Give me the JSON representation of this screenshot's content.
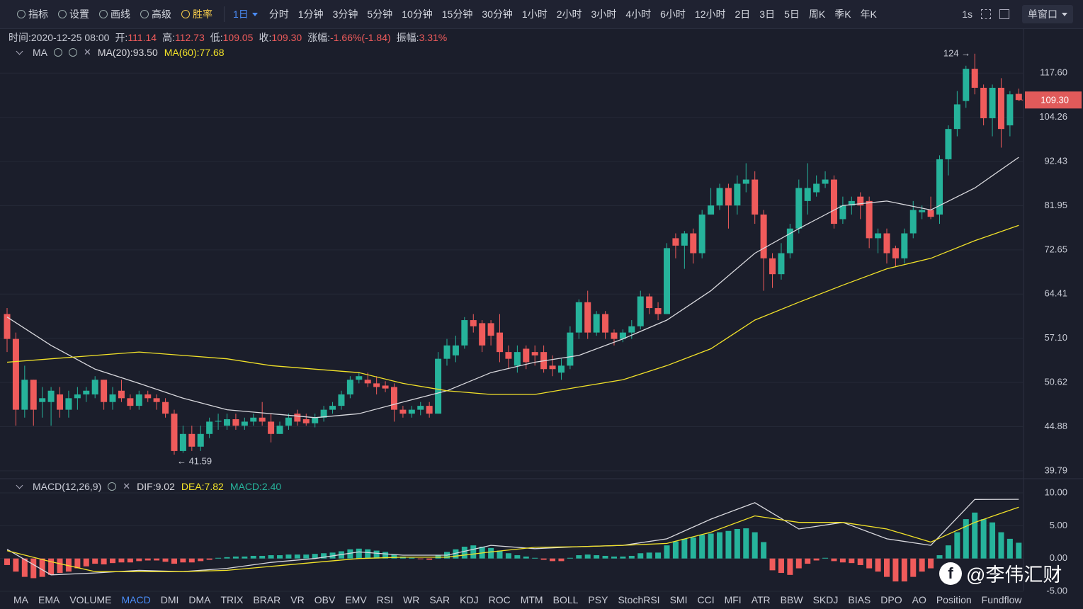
{
  "toolbar": {
    "tools": [
      "指标",
      "设置",
      "画线",
      "高级",
      "胜率"
    ],
    "active_period": "1日",
    "periods": [
      "分时",
      "1分钟",
      "3分钟",
      "5分钟",
      "10分钟",
      "15分钟",
      "30分钟",
      "1小时",
      "2小时",
      "3小时",
      "4小时",
      "6小时",
      "12小时",
      "2日",
      "3日",
      "5日",
      "周K",
      "季K",
      "年K"
    ],
    "refresh": "1s",
    "window": "单窗口"
  },
  "info": [
    {
      "label": "时间:",
      "value": "2020-12-25 08:00"
    },
    {
      "label": "开:",
      "value": "111.14"
    },
    {
      "label": "高:",
      "value": "112.73"
    },
    {
      "label": "低:",
      "value": "109.05"
    },
    {
      "label": "收:",
      "value": "109.30"
    },
    {
      "label": "涨幅:",
      "value": "-1.66%(-1.84)"
    },
    {
      "label": "振幅:",
      "value": "3.31%"
    }
  ],
  "tabs": [
    "MA",
    "EMA",
    "VOLUME",
    "MACD",
    "DMI",
    "DMA",
    "TRIX",
    "BRAR",
    "VR",
    "OBV",
    "EMV",
    "RSI",
    "WR",
    "SAR",
    "KDJ",
    "ROC",
    "MTM",
    "BOLL",
    "PSY",
    "StochRSI",
    "SMI",
    "CCI",
    "MFI",
    "ATR",
    "BBW",
    "SKDJ",
    "BIAS",
    "DPO",
    "AO",
    "Position",
    "Fundflow"
  ],
  "active_tab": "MACD",
  "watermark": "@李伟汇财",
  "chart_data": [
    {
      "type": "candlestick",
      "indicator": "MA",
      "log_scale": true,
      "up_color": "#26b39b",
      "down_color": "#ef5b5b",
      "ylim": [
        39.25,
        125.4
      ],
      "yticks": [
        {
          "value": 117.6,
          "label": "117.60"
        },
        {
          "value": 104.26,
          "label": "104.26"
        },
        {
          "value": 92.43,
          "label": "92.43"
        },
        {
          "value": 81.95,
          "label": "81.95"
        },
        {
          "value": 72.65,
          "label": "72.65"
        },
        {
          "value": 64.41,
          "label": "64.41"
        },
        {
          "value": 57.1,
          "label": "57.10"
        },
        {
          "value": 50.62,
          "label": "50.62"
        },
        {
          "value": 44.88,
          "label": "44.88"
        },
        {
          "value": 39.79,
          "label": "39.79"
        }
      ],
      "current_price": {
        "value": 109.3,
        "label": "109.30"
      },
      "high_marker": {
        "value": 124,
        "label": "124 →"
      },
      "low_marker": {
        "value": 41.59,
        "label": "← 41.59"
      },
      "candles": [
        [
          61,
          62,
          55,
          57
        ],
        [
          57,
          58,
          45,
          47
        ],
        [
          47,
          53,
          46,
          51
        ],
        [
          51,
          51,
          45,
          47
        ],
        [
          48,
          50,
          46,
          48.5
        ],
        [
          48,
          50,
          45,
          49.5
        ],
        [
          49,
          50,
          46,
          47
        ],
        [
          47,
          49.5,
          46,
          48.5
        ],
        [
          48.5,
          50,
          47,
          49
        ],
        [
          49,
          50,
          48,
          49.5
        ],
        [
          49,
          51.5,
          48.5,
          51
        ],
        [
          51,
          51,
          47,
          48
        ],
        [
          48,
          50,
          47,
          49
        ],
        [
          49.5,
          51,
          48,
          48.5
        ],
        [
          48.5,
          49,
          47,
          47.5
        ],
        [
          47.5,
          49.5,
          47,
          49
        ],
        [
          49,
          49.5,
          48,
          48.5
        ],
        [
          48.5,
          49,
          47,
          48
        ],
        [
          48,
          48.5,
          46,
          46.5
        ],
        [
          46.5,
          47,
          41.59,
          42
        ],
        [
          42,
          45,
          41.8,
          44
        ],
        [
          44,
          45,
          42,
          42.5
        ],
        [
          42.5,
          45,
          42,
          44
        ],
        [
          44,
          46,
          43.5,
          45.5
        ],
        [
          45.5,
          46.5,
          44.5,
          45.6
        ],
        [
          45,
          46.5,
          44.5,
          45.8
        ],
        [
          45.8,
          46.5,
          44.5,
          45
        ],
        [
          45,
          46,
          44.5,
          45.5
        ],
        [
          45.5,
          46.5,
          45,
          46
        ],
        [
          46,
          48,
          45,
          45.5
        ],
        [
          45.5,
          46.5,
          43,
          44
        ],
        [
          44,
          45.5,
          44,
          45
        ],
        [
          45,
          46.5,
          44.5,
          46
        ],
        [
          46.5,
          47,
          45,
          45.5
        ],
        [
          45.8,
          46.5,
          45,
          45.3
        ],
        [
          45.3,
          46.5,
          44.8,
          46
        ],
        [
          46,
          47.5,
          45.5,
          47
        ],
        [
          47,
          48,
          46.5,
          47.5
        ],
        [
          47.5,
          49.5,
          47,
          49
        ],
        [
          49,
          51.5,
          48.5,
          51
        ],
        [
          51,
          52,
          50.5,
          51.5
        ],
        [
          51,
          52,
          50,
          50.5
        ],
        [
          50.5,
          51.5,
          49,
          50
        ],
        [
          50.2,
          50.8,
          49.3,
          49.8
        ],
        [
          50,
          50.5,
          45.5,
          47
        ],
        [
          47,
          47.5,
          46,
          46.5
        ],
        [
          46.5,
          47.5,
          46,
          47
        ],
        [
          47,
          48,
          46.3,
          47.5
        ],
        [
          47.5,
          48,
          46,
          46.5
        ],
        [
          46.5,
          55,
          46.5,
          54
        ],
        [
          54,
          57,
          53,
          56
        ],
        [
          54.5,
          57.5,
          53.5,
          56
        ],
        [
          56,
          60.5,
          55.5,
          60
        ],
        [
          60,
          61,
          58,
          59
        ],
        [
          59.5,
          60,
          55,
          56
        ],
        [
          59.5,
          60,
          56,
          57.5
        ],
        [
          58,
          61,
          53.5,
          55
        ],
        [
          55,
          56,
          52.5,
          54
        ],
        [
          53,
          56,
          52,
          55
        ],
        [
          55.5,
          56,
          52.5,
          53.5
        ],
        [
          55,
          56,
          53,
          54.5
        ],
        [
          55,
          56,
          52,
          52.5
        ],
        [
          53,
          54.5,
          51.5,
          52.5
        ],
        [
          52,
          54,
          51,
          53
        ],
        [
          53,
          59,
          52.5,
          58
        ],
        [
          58,
          63.5,
          57,
          63
        ],
        [
          63,
          65,
          57,
          58
        ],
        [
          58,
          61.5,
          57.5,
          61
        ],
        [
          61,
          61.5,
          57,
          58
        ],
        [
          58,
          58.5,
          56,
          57
        ],
        [
          57,
          58.5,
          56.5,
          58
        ],
        [
          58,
          60,
          57,
          59
        ],
        [
          59,
          65,
          58.5,
          64
        ],
        [
          64,
          64.5,
          61,
          62
        ],
        [
          62,
          63,
          60,
          61
        ],
        [
          61,
          74,
          61,
          73
        ],
        [
          75,
          76,
          71,
          73.5
        ],
        [
          73.5,
          76.5,
          69,
          76
        ],
        [
          76,
          77,
          70,
          72
        ],
        [
          72,
          81,
          71,
          80
        ],
        [
          80,
          86,
          80,
          82
        ],
        [
          82,
          87,
          81,
          86
        ],
        [
          86,
          87,
          77,
          82
        ],
        [
          82,
          89,
          80,
          87
        ],
        [
          87,
          92,
          85,
          88
        ],
        [
          88,
          90,
          78,
          80
        ],
        [
          80,
          81,
          65,
          71
        ],
        [
          71,
          72,
          65.5,
          68
        ],
        [
          68,
          74,
          67,
          72
        ],
        [
          72,
          78,
          71,
          77
        ],
        [
          77,
          88,
          76,
          86
        ],
        [
          83,
          92,
          80,
          86
        ],
        [
          85,
          89,
          84,
          87
        ],
        [
          87,
          90,
          86,
          88
        ],
        [
          88,
          89,
          77,
          78
        ],
        [
          79,
          84,
          78,
          82
        ],
        [
          82,
          84,
          80,
          83
        ],
        [
          84,
          85,
          79,
          82
        ],
        [
          83,
          84,
          73,
          75
        ],
        [
          75,
          77,
          72,
          76
        ],
        [
          76,
          77,
          70,
          72
        ],
        [
          73,
          73.5,
          69.5,
          71
        ],
        [
          71,
          77,
          70,
          76
        ],
        [
          76,
          83,
          75,
          81
        ],
        [
          80.5,
          82,
          79,
          81
        ],
        [
          81,
          84,
          79,
          79.5
        ],
        [
          80,
          94,
          78,
          93
        ],
        [
          93,
          102,
          89,
          101
        ],
        [
          101,
          112,
          99,
          108
        ],
        [
          109,
          120,
          107,
          119
        ],
        [
          119,
          124,
          111,
          113
        ],
        [
          113,
          114,
          102,
          104
        ],
        [
          104,
          114,
          99,
          113
        ],
        [
          113,
          116,
          96,
          101
        ],
        [
          102,
          112,
          99,
          111
        ],
        [
          111.14,
          112.73,
          109.05,
          109.3
        ]
      ],
      "series": [
        {
          "name": "MA(20):93.50",
          "color": "#d9d9de",
          "x": [
            0,
            5,
            10,
            15,
            20,
            25,
            30,
            35,
            40,
            45,
            50,
            55,
            60,
            65,
            70,
            75,
            80,
            85,
            90,
            95,
            100,
            105,
            110,
            115
          ],
          "values": [
            60.5,
            56,
            52.5,
            50.5,
            48.5,
            47,
            46.5,
            46,
            46.5,
            48,
            49.5,
            52,
            53.5,
            54.5,
            57,
            60,
            65,
            72,
            77,
            82,
            83,
            81,
            86,
            93.5
          ]
        },
        {
          "name": "MA(60):77.68",
          "color": "#f2e229",
          "x": [
            0,
            5,
            10,
            15,
            20,
            25,
            30,
            35,
            40,
            45,
            50,
            55,
            60,
            65,
            70,
            75,
            80,
            85,
            90,
            95,
            100,
            105,
            110,
            115
          ],
          "values": [
            53.5,
            54,
            54.5,
            55,
            54.5,
            54,
            53,
            52.5,
            52,
            50.5,
            49.5,
            49,
            49,
            50,
            51,
            53,
            55.5,
            60,
            63,
            66,
            69,
            71,
            74.5,
            77.68
          ]
        }
      ]
    },
    {
      "type": "macd",
      "indicator": "MACD(12,26,9)",
      "ylim": [
        -5.54,
        11.73
      ],
      "yticks": [
        {
          "value": 10,
          "label": "10.00"
        },
        {
          "value": 5,
          "label": "5.00"
        },
        {
          "value": 0,
          "label": "0.00"
        },
        {
          "value": -5,
          "label": "-5.00"
        }
      ],
      "up_color": "#26b39b",
      "down_color": "#ef5b5b",
      "histogram": {
        "name": "MACD:2.40",
        "color": "#26b39b",
        "values": [
          -1,
          -2,
          -2.8,
          -3,
          -2.8,
          -2.5,
          -2.2,
          -2,
          -1.5,
          -1.2,
          -0.8,
          -0.9,
          -0.7,
          -0.6,
          -0.6,
          -0.4,
          -0.3,
          -0.3,
          -0.5,
          -0.8,
          -0.6,
          -0.6,
          -0.4,
          -0.2,
          0.1,
          0.2,
          0.3,
          0.3,
          0.4,
          0.4,
          0.5,
          0.5,
          0.6,
          0.6,
          0.6,
          0.7,
          0.8,
          0.9,
          1.1,
          1.4,
          1.5,
          1.4,
          1.2,
          1,
          0.6,
          0.3,
          0.1,
          -0.1,
          -0.2,
          0.5,
          1,
          1.4,
          1.8,
          2,
          1.8,
          1.6,
          1.2,
          0.8,
          0.5,
          0.3,
          0.1,
          -0.2,
          -0.4,
          -0.4,
          0.1,
          0.5,
          0.6,
          0.5,
          0.4,
          0.3,
          0.3,
          0.4,
          0.8,
          0.9,
          0.9,
          2,
          2.6,
          3,
          3.2,
          3.6,
          3.8,
          4,
          4.2,
          4.5,
          4.6,
          4,
          2.5,
          -1.8,
          -2.2,
          -2.5,
          -1.5,
          -0.8,
          -0.3,
          0.1,
          -0.4,
          -0.6,
          -0.7,
          -1,
          -1.5,
          -2,
          -2.8,
          -3.5,
          -3.5,
          -2.8,
          -2,
          -1.5,
          0.5,
          2,
          4,
          6,
          7,
          6,
          5.5,
          4,
          3,
          2.4
        ]
      },
      "series": [
        {
          "name": "DIF:9.02",
          "color": "#d9d9de",
          "x": [
            0,
            5,
            10,
            15,
            20,
            25,
            30,
            35,
            40,
            45,
            50,
            55,
            60,
            65,
            70,
            75,
            80,
            85,
            90,
            95,
            100,
            105,
            110,
            115
          ],
          "values": [
            1.4,
            -2.5,
            -2.2,
            -1.8,
            -2,
            -1.5,
            -0.6,
            0,
            1,
            0.5,
            0.5,
            2,
            1.5,
            1.8,
            2,
            3,
            6,
            8.5,
            4.5,
            5.5,
            3,
            2,
            9,
            9.02
          ]
        },
        {
          "name": "DEA:7.82",
          "color": "#f2e229",
          "x": [
            0,
            5,
            10,
            15,
            20,
            25,
            30,
            35,
            40,
            45,
            50,
            55,
            60,
            65,
            70,
            75,
            80,
            85,
            90,
            95,
            100,
            105,
            110,
            115
          ],
          "values": [
            1.2,
            -0.5,
            -2,
            -2,
            -2,
            -1.8,
            -1.2,
            -0.6,
            0,
            0.2,
            0.2,
            1,
            1.7,
            1.8,
            2,
            2.3,
            4,
            6.5,
            5.5,
            5.5,
            4.5,
            2.5,
            5.5,
            7.82
          ]
        }
      ]
    }
  ]
}
